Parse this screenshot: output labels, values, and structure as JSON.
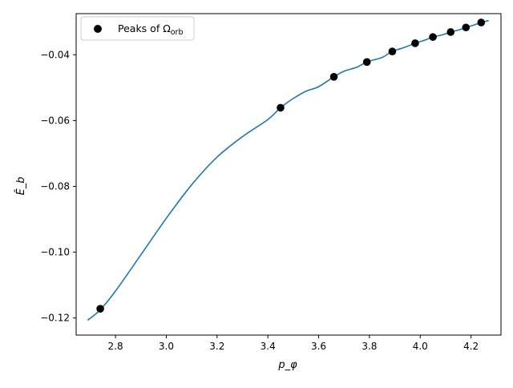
{
  "chart_data": {
    "type": "line",
    "xlabel": "p_φ",
    "ylabel": "Ê_b",
    "xlim": [
      2.645,
      4.318
    ],
    "ylim": [
      -0.1252,
      -0.0275
    ],
    "xticks": [
      2.8,
      3.0,
      3.2,
      3.4,
      3.6,
      3.8,
      4.0,
      4.2
    ],
    "yticks": [
      -0.12,
      -0.1,
      -0.08,
      -0.06,
      -0.04
    ],
    "xtick_labels": [
      "2.8",
      "3.0",
      "3.2",
      "3.4",
      "3.6",
      "3.8",
      "4.0",
      "4.2"
    ],
    "ytick_labels": [
      "−0.12",
      "−0.10",
      "−0.08",
      "−0.06",
      "−0.04"
    ],
    "grid": false,
    "legend_position": "top-left",
    "legend": {
      "label_prefix": "Peaks of Ω",
      "label_subscript": "orb"
    },
    "series": [
      {
        "kind": "line",
        "color": "#1f77b4",
        "x": [
          2.69,
          2.74,
          2.8,
          2.9,
          3.0,
          3.1,
          3.2,
          3.3,
          3.4,
          3.45,
          3.5,
          3.55,
          3.6,
          3.66,
          3.7,
          3.75,
          3.79,
          3.85,
          3.89,
          3.94,
          3.98,
          4.02,
          4.05,
          4.09,
          4.12,
          4.15,
          4.18,
          4.21,
          4.24,
          4.27
        ],
        "y": [
          -0.1207,
          -0.1175,
          -0.1118,
          -0.1008,
          -0.0897,
          -0.0795,
          -0.0711,
          -0.0649,
          -0.0597,
          -0.0561,
          -0.0533,
          -0.0511,
          -0.0497,
          -0.0467,
          -0.045,
          -0.0438,
          -0.0422,
          -0.0408,
          -0.039,
          -0.0377,
          -0.0365,
          -0.0355,
          -0.0346,
          -0.0339,
          -0.0331,
          -0.0325,
          -0.0317,
          -0.031,
          -0.0302,
          -0.0296
        ]
      },
      {
        "kind": "scatter",
        "color": "#000000",
        "x": [
          2.74,
          3.45,
          3.66,
          3.79,
          3.89,
          3.98,
          4.05,
          4.12,
          4.18,
          4.24
        ],
        "y": [
          -0.1172,
          -0.0561,
          -0.0467,
          -0.0422,
          -0.039,
          -0.0365,
          -0.0346,
          -0.0331,
          -0.0317,
          -0.0302
        ]
      }
    ]
  }
}
